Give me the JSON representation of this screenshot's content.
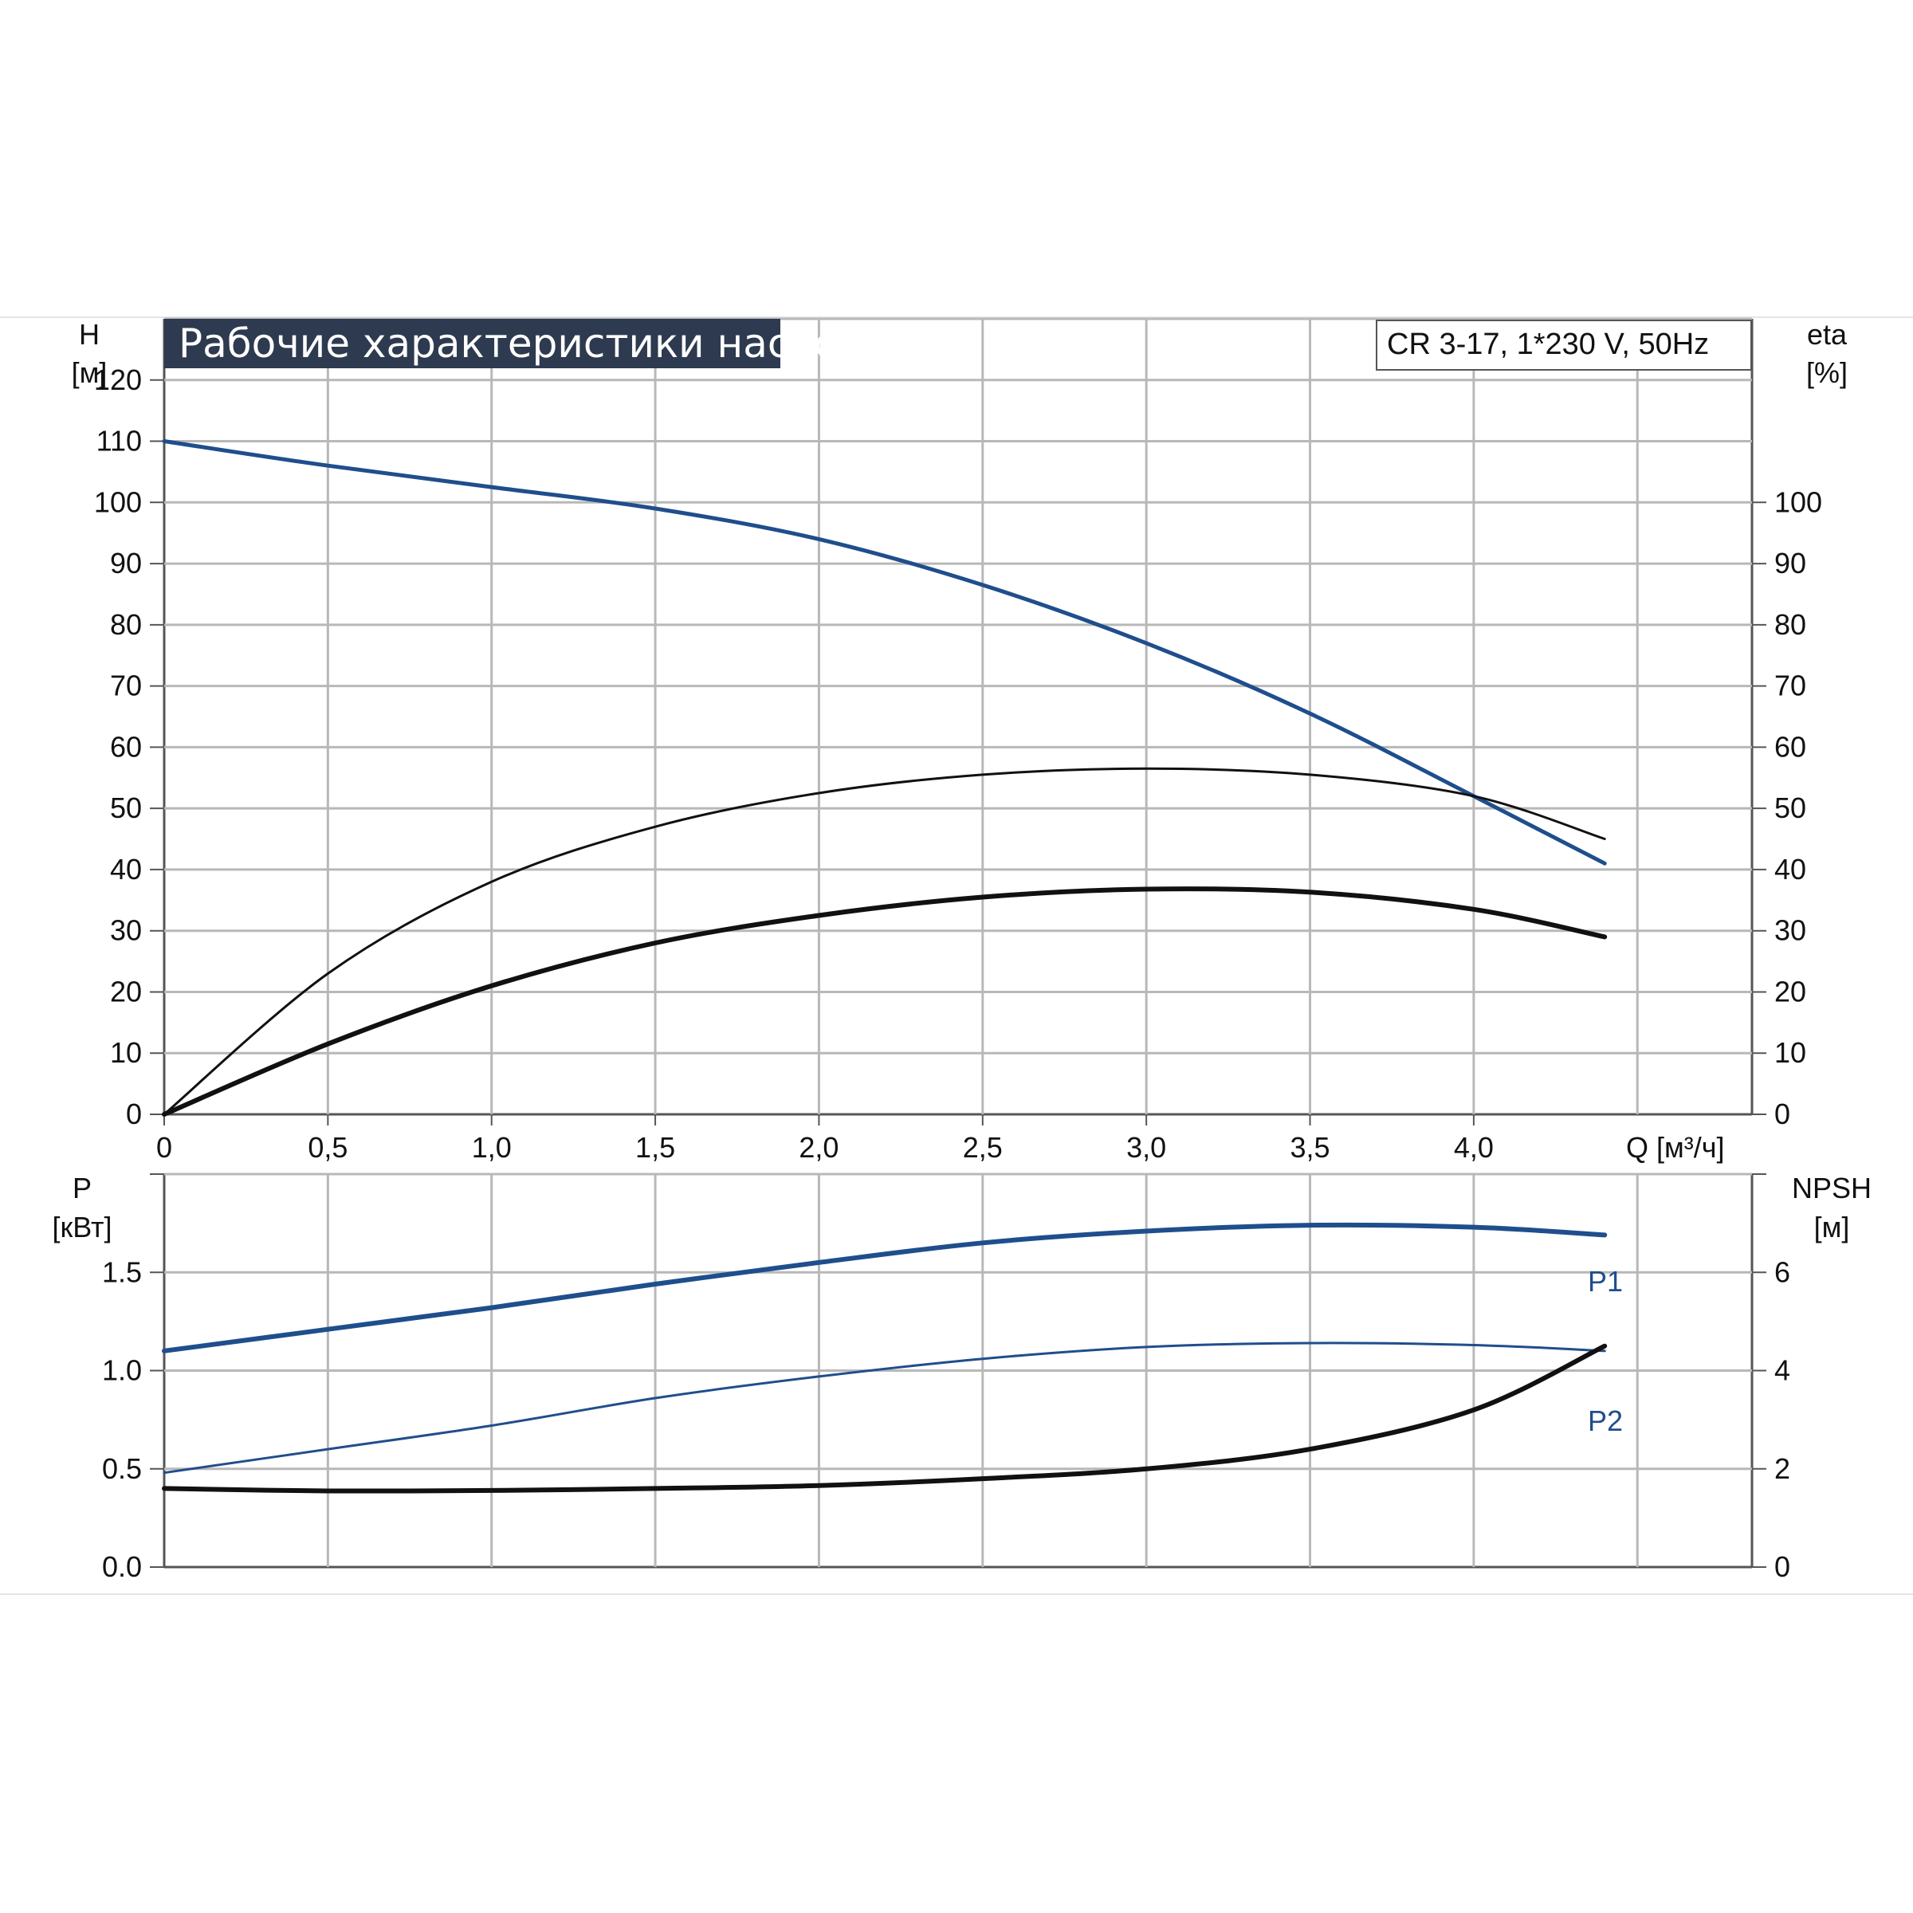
{
  "colors": {
    "title_bg": "#2e3a4f",
    "blue_curve": "#1f4e8c",
    "black_curve": "#111111",
    "grid": "#b8b8b8",
    "frame": "#555555"
  },
  "chart_data": [
    {
      "type": "line",
      "title": "Рабочие характеристики насоса",
      "model": "CR 3-17, 1*230 V, 50Hz",
      "left_axis": {
        "label": "H",
        "unit": "[м]",
        "ylim": [
          0,
          130
        ],
        "ticks": [
          "0",
          "10",
          "20",
          "30",
          "40",
          "50",
          "60",
          "70",
          "80",
          "90",
          "100",
          "110",
          "120"
        ]
      },
      "right_axis": {
        "label": "eta",
        "unit": "[%]",
        "ylim": [
          0,
          130
        ],
        "ticks": [
          "0",
          "10",
          "20",
          "30",
          "40",
          "50",
          "60",
          "70",
          "80",
          "90",
          "100"
        ]
      },
      "x_axis": {
        "label": "Q [м³/ч]",
        "xlim": [
          0,
          4.85
        ],
        "ticks": [
          "0",
          "0,5",
          "1,0",
          "1,5",
          "2,0",
          "2,5",
          "3,0",
          "3,5",
          "4,0"
        ]
      },
      "grid": true,
      "series": [
        {
          "color": "blue",
          "axis": "left",
          "x": [
            0,
            0.5,
            1.0,
            1.5,
            2.0,
            2.5,
            3.0,
            3.5,
            4.0,
            4.4
          ],
          "y": [
            110,
            106,
            102.5,
            99,
            94,
            86.5,
            77,
            65.5,
            52,
            41
          ]
        },
        {
          "color": "black",
          "axis": "right",
          "x": [
            0,
            0.5,
            1.0,
            1.5,
            2.0,
            2.5,
            3.0,
            3.5,
            4.0,
            4.4
          ],
          "y": [
            0,
            23,
            38,
            47,
            52.5,
            55.5,
            56.5,
            55.5,
            52,
            45
          ]
        },
        {
          "color": "black",
          "axis": "left",
          "x": [
            0,
            0.5,
            1.0,
            1.5,
            2.0,
            2.5,
            3.0,
            3.5,
            4.0,
            4.4
          ],
          "y": [
            0,
            11.5,
            21,
            28,
            32.5,
            35.5,
            36.8,
            36.3,
            33.5,
            29
          ]
        }
      ]
    },
    {
      "type": "line",
      "left_axis": {
        "label": "P",
        "unit": "[кВт]",
        "ylim": [
          0,
          2.0
        ],
        "ticks": [
          "0.0",
          "0.5",
          "1.0",
          "1.5"
        ]
      },
      "right_axis": {
        "label": "NPSH",
        "unit": "[м]",
        "ylim": [
          0,
          8
        ],
        "ticks": [
          "0",
          "2",
          "4",
          "6"
        ]
      },
      "x_axis": {
        "xlim": [
          0,
          4.85
        ]
      },
      "grid": true,
      "series": [
        {
          "name": "P1",
          "color": "blue",
          "axis": "left",
          "x": [
            0,
            0.5,
            1.0,
            1.5,
            2.0,
            2.5,
            3.0,
            3.5,
            4.0,
            4.4
          ],
          "y": [
            1.1,
            1.21,
            1.32,
            1.44,
            1.55,
            1.65,
            1.71,
            1.74,
            1.73,
            1.69
          ]
        },
        {
          "name": "P2",
          "color": "blue",
          "axis": "left",
          "x": [
            0,
            0.5,
            1.0,
            1.5,
            2.0,
            2.5,
            3.0,
            3.5,
            4.0,
            4.4
          ],
          "y": [
            0.48,
            0.6,
            0.72,
            0.86,
            0.97,
            1.06,
            1.12,
            1.14,
            1.13,
            1.1
          ]
        },
        {
          "color": "black",
          "axis": "right",
          "x": [
            0,
            0.5,
            1.0,
            1.5,
            2.0,
            2.5,
            3.0,
            3.5,
            4.0,
            4.4
          ],
          "y": [
            1.6,
            1.55,
            1.56,
            1.6,
            1.66,
            1.8,
            2.0,
            2.4,
            3.2,
            4.5
          ]
        }
      ]
    }
  ]
}
